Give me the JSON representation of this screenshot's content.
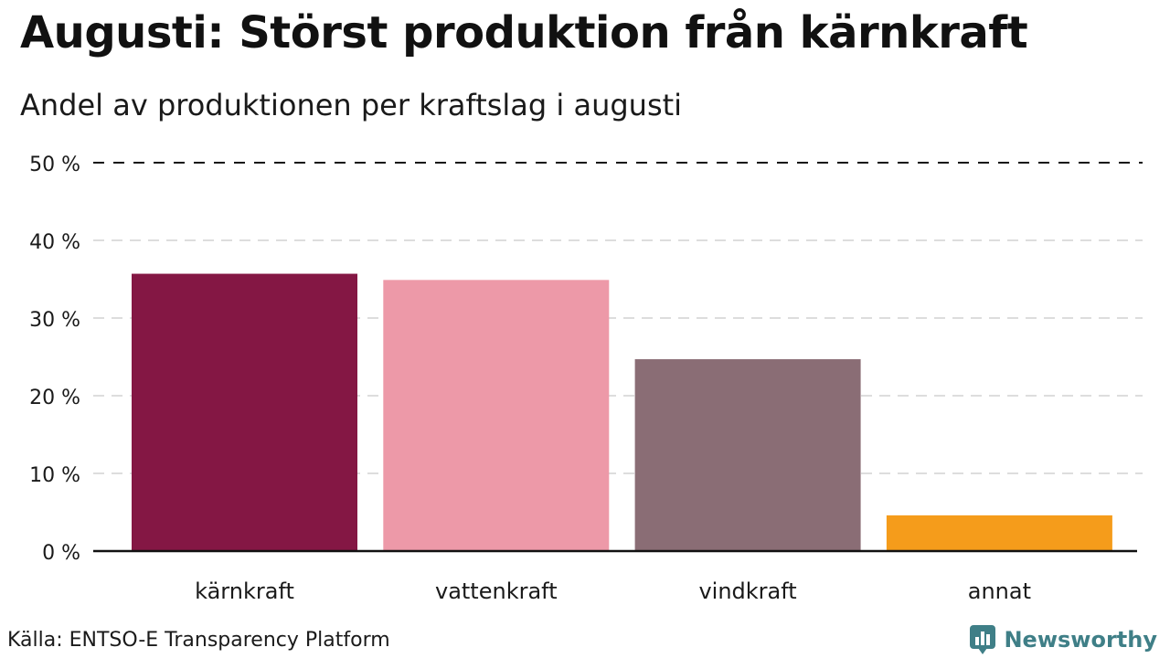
{
  "title": "Augusti: Störst produktion från kärnkraft",
  "subtitle": "Andel av produktionen per kraftslag i augusti",
  "source": "Källa: ENTSO-E Transparency Platform",
  "brand": {
    "name": "Newsworthy",
    "icon": "newsworthy-logo-icon",
    "color": "#3f7f87"
  },
  "chart_data": {
    "type": "bar",
    "title": "Augusti: Störst produktion från kärnkraft",
    "subtitle": "Andel av produktionen per kraftslag i augusti",
    "categories": [
      "kärnkraft",
      "vattenkraft",
      "vindkraft",
      "annat"
    ],
    "values": [
      35.7,
      34.9,
      24.7,
      4.6
    ],
    "colors": [
      "#841744",
      "#ed99a8",
      "#8a6d75",
      "#f59c1b"
    ],
    "ylim": [
      0,
      50
    ],
    "yticks": [
      0,
      10,
      20,
      30,
      40,
      50
    ],
    "ytick_labels": [
      "0 %",
      "10 %",
      "20 %",
      "30 %",
      "40 %",
      "50 %"
    ],
    "xlabel": "",
    "ylabel": "",
    "grid": true,
    "legend": "none"
  }
}
